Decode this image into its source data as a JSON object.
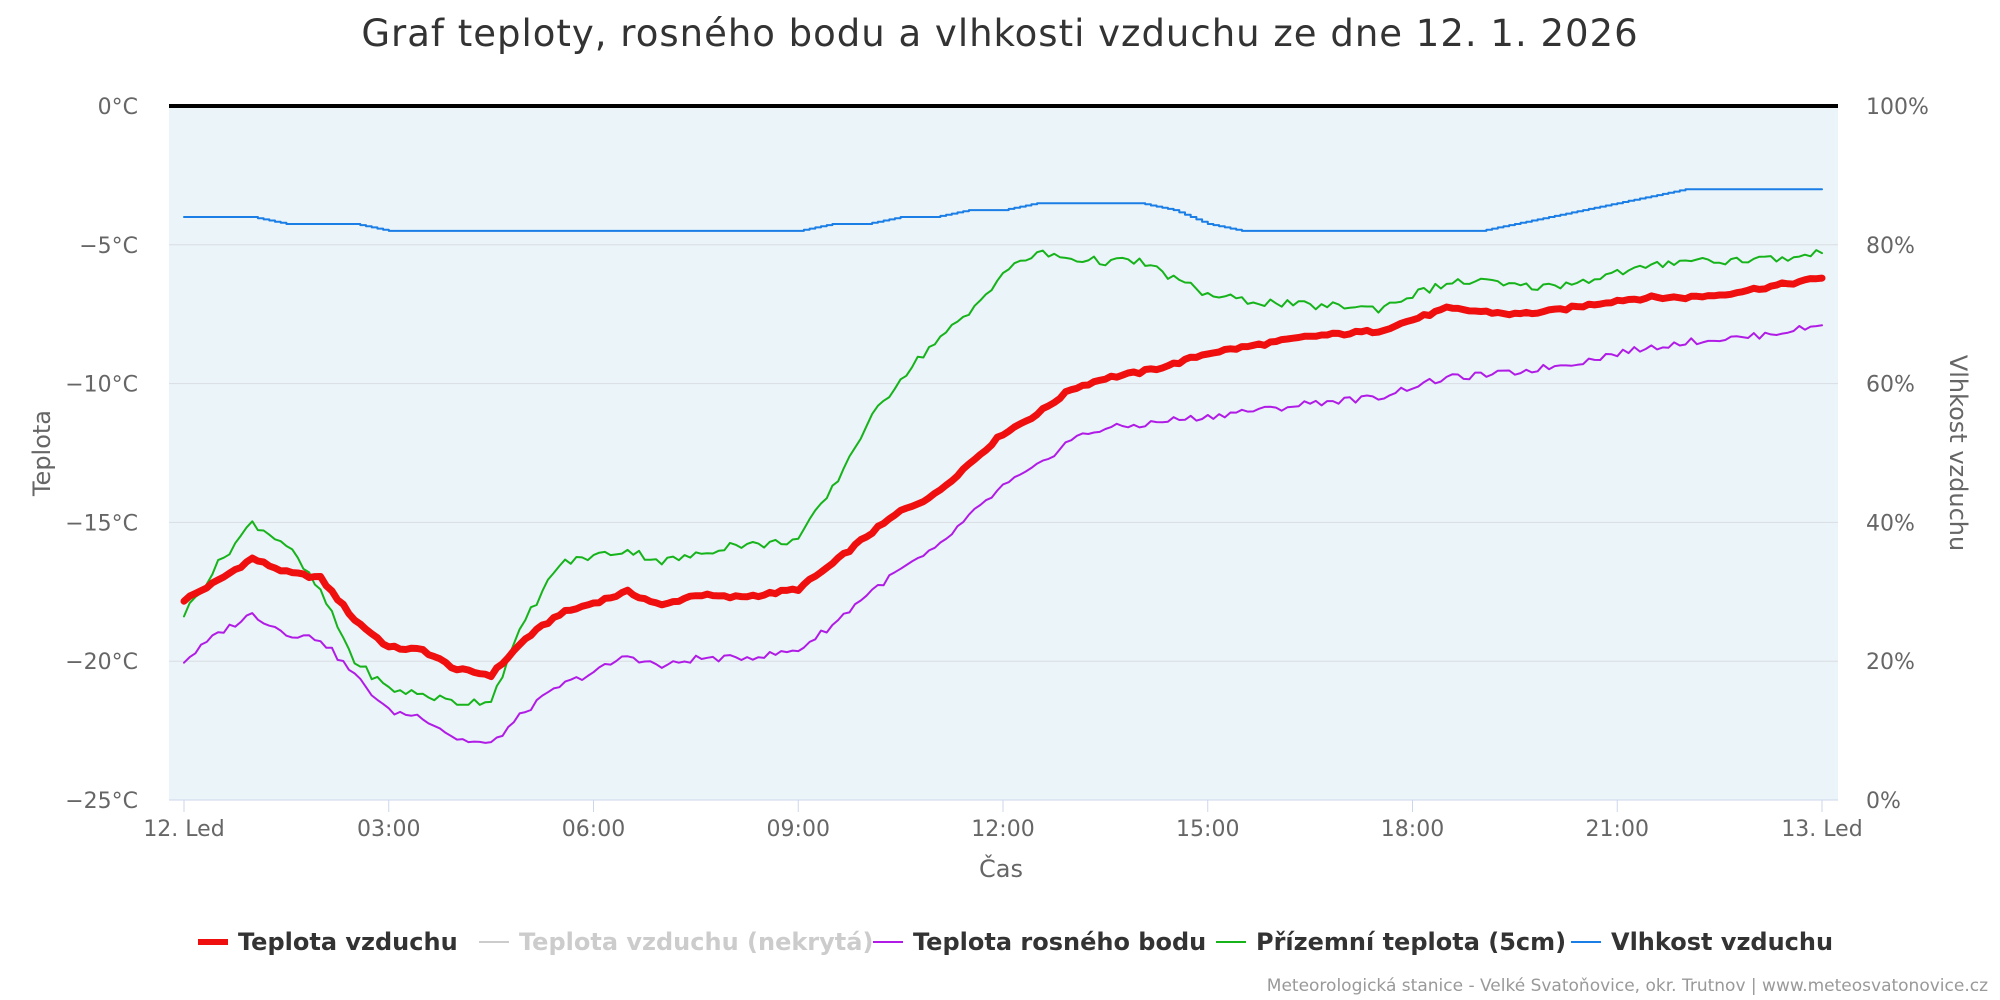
{
  "chart_data": {
    "type": "line",
    "title": "Graf teploty, rosného bodu a vlhkosti vzduchu ze dne 12. 1. 2026",
    "xlabel": "Čas",
    "ylabel": "Teplota",
    "y2label": "Vlhkost vzduchu",
    "x_ticks": [
      "12. Led",
      "03:00",
      "06:00",
      "09:00",
      "12:00",
      "15:00",
      "18:00",
      "21:00",
      "13. Led"
    ],
    "x_range_hours": [
      0,
      24
    ],
    "ylim": [
      -25,
      0
    ],
    "y_ticks": [
      "0°C",
      "−5°C",
      "−10°C",
      "−15°C",
      "−20°C",
      "−25°C"
    ],
    "y2lim": [
      0,
      100
    ],
    "y2_ticks": [
      "100%",
      "80%",
      "60%",
      "40%",
      "20%",
      "0%"
    ],
    "grid": true,
    "legend_position": "bottom-center",
    "x_hours": [
      0,
      0.5,
      1,
      1.5,
      2,
      2.5,
      3,
      3.5,
      4,
      4.5,
      5,
      5.5,
      6,
      6.5,
      7,
      7.5,
      8,
      8.5,
      9,
      9.5,
      10,
      10.5,
      11,
      11.5,
      12,
      12.5,
      13,
      13.5,
      14,
      14.5,
      15,
      15.5,
      16,
      16.5,
      17,
      17.5,
      18,
      18.5,
      19,
      19.5,
      20,
      20.5,
      21,
      21.5,
      22,
      22.5,
      23,
      23.5,
      24
    ],
    "series": [
      {
        "name": "Teplota vzduchu",
        "color": "#f00f0f",
        "visible": true,
        "axis": "left",
        "values": [
          -17.8,
          -17.1,
          -16.3,
          -16.8,
          -17.0,
          -18.5,
          -19.5,
          -19.6,
          -20.3,
          -20.5,
          -19.2,
          -18.3,
          -17.9,
          -17.5,
          -18.0,
          -17.6,
          -17.7,
          -17.6,
          -17.4,
          -16.5,
          -15.5,
          -14.6,
          -14.0,
          -12.9,
          -11.8,
          -11.1,
          -10.2,
          -9.8,
          -9.6,
          -9.3,
          -8.9,
          -8.7,
          -8.5,
          -8.3,
          -8.2,
          -8.1,
          -7.7,
          -7.3,
          -7.4,
          -7.5,
          -7.4,
          -7.2,
          -7.0,
          -6.9,
          -6.9,
          -6.8,
          -6.6,
          -6.4,
          -6.2
        ]
      },
      {
        "name": "Teplota vzduchu (nekrytá)",
        "color": "#cccccc",
        "visible": false,
        "axis": "left",
        "values": []
      },
      {
        "name": "Teplota rosného bodu",
        "color": "#b01ce6",
        "visible": true,
        "axis": "left",
        "values": [
          -20.0,
          -19.0,
          -18.3,
          -19.0,
          -19.2,
          -20.5,
          -21.8,
          -22.0,
          -22.8,
          -23.0,
          -21.8,
          -20.9,
          -20.4,
          -19.8,
          -20.2,
          -19.9,
          -19.9,
          -19.8,
          -19.6,
          -18.7,
          -17.6,
          -16.7,
          -16.0,
          -14.8,
          -13.7,
          -13.0,
          -12.0,
          -11.6,
          -11.5,
          -11.3,
          -11.2,
          -11.0,
          -10.9,
          -10.7,
          -10.6,
          -10.5,
          -10.1,
          -9.8,
          -9.7,
          -9.6,
          -9.4,
          -9.2,
          -8.9,
          -8.7,
          -8.5,
          -8.4,
          -8.3,
          -8.1,
          -7.9
        ]
      },
      {
        "name": "Přízemní teplota (5cm)",
        "color": "#16b31b",
        "visible": true,
        "axis": "left",
        "values": [
          -18.3,
          -16.5,
          -15.0,
          -15.8,
          -17.5,
          -20.0,
          -21.0,
          -21.2,
          -21.5,
          -21.4,
          -18.5,
          -16.5,
          -16.2,
          -16.0,
          -16.4,
          -16.2,
          -15.8,
          -15.8,
          -15.6,
          -13.8,
          -11.5,
          -9.8,
          -8.5,
          -7.5,
          -6.0,
          -5.3,
          -5.5,
          -5.6,
          -5.6,
          -6.2,
          -6.8,
          -7.0,
          -7.1,
          -7.2,
          -7.2,
          -7.3,
          -6.8,
          -6.4,
          -6.3,
          -6.5,
          -6.5,
          -6.3,
          -6.0,
          -5.8,
          -5.5,
          -5.6,
          -5.5,
          -5.5,
          -5.3
        ]
      },
      {
        "name": "Vlhkost vzduchu",
        "color": "#1a7ee6",
        "visible": true,
        "axis": "right",
        "values": [
          84,
          84,
          84,
          83,
          83,
          83,
          82,
          82,
          82,
          82,
          82,
          82,
          82,
          82,
          82,
          82,
          82,
          82,
          82,
          83,
          83,
          84,
          84,
          85,
          85,
          86,
          86,
          86,
          86,
          85,
          83,
          82,
          82,
          82,
          82,
          82,
          82,
          82,
          82,
          83,
          84,
          85,
          86,
          87,
          88,
          88,
          88,
          88,
          88
        ]
      }
    ]
  },
  "credits": "Meteorologická stanice - Velké Svatoňovice, okr. Trutnov | www.meteosvatonovice.cz"
}
